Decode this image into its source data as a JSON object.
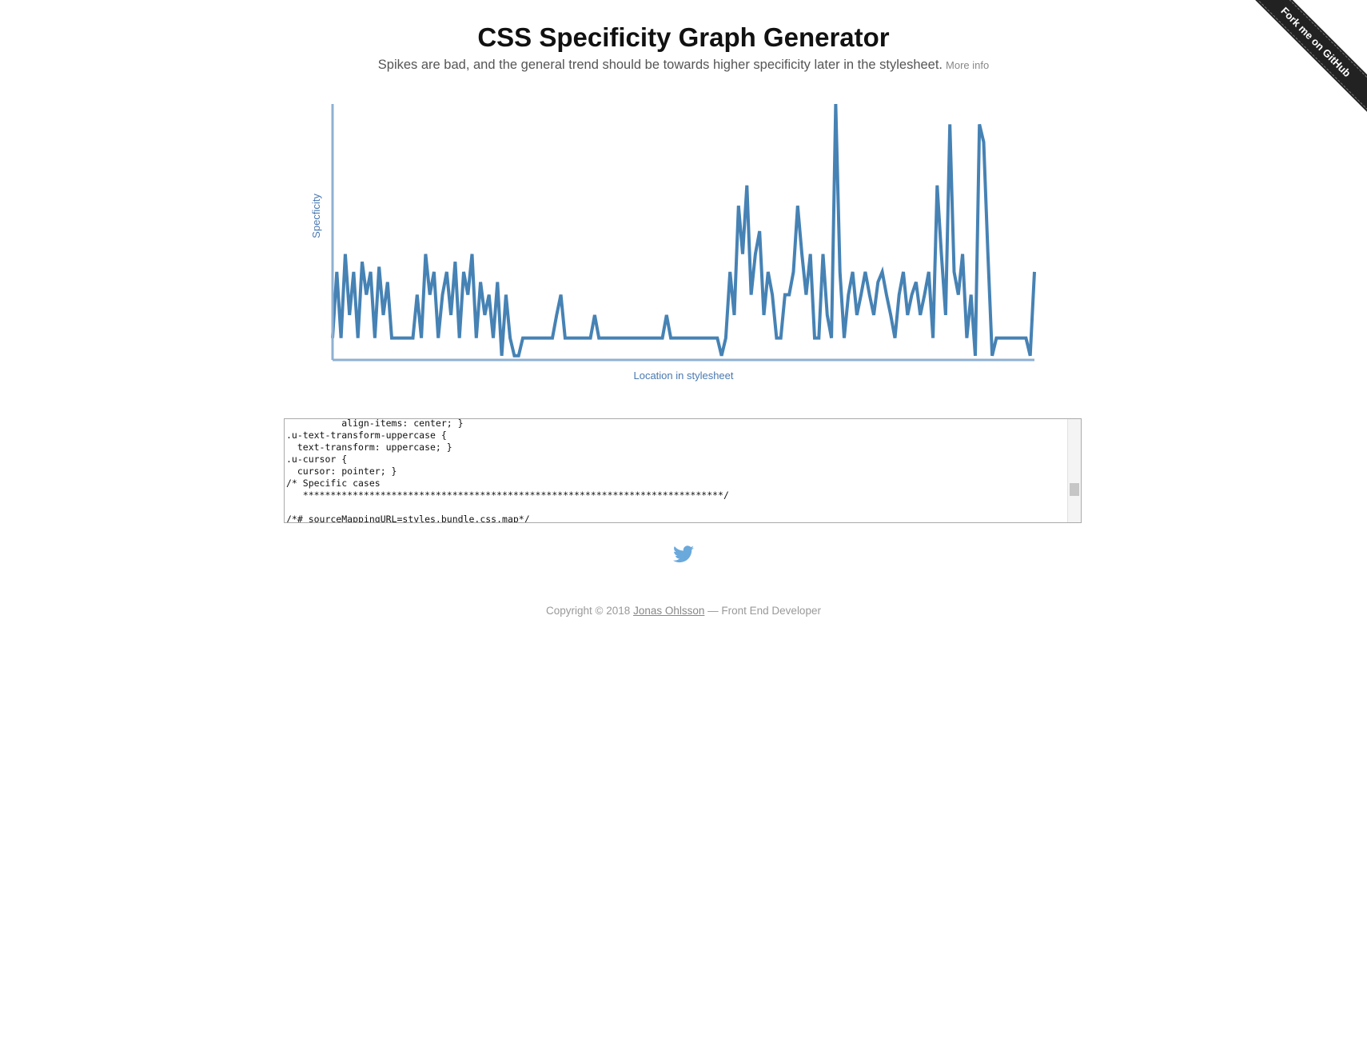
{
  "header": {
    "title": "CSS Specificity Graph Generator",
    "subtitle": "Spikes are bad, and the general trend should be towards higher specificity later in the stylesheet.",
    "more_info": "More info"
  },
  "ribbon": "Fork me on GitHub",
  "chart_data": {
    "type": "line",
    "y_label": "Specficity",
    "x_label": "Location in stylesheet",
    "color": "#4682b4",
    "axis_color": "#8fb0d3",
    "ylim": [
      0,
      100
    ],
    "values": [
      8,
      34,
      8,
      41,
      17,
      34,
      8,
      38,
      25,
      34,
      8,
      36,
      17,
      30,
      8,
      8,
      8,
      8,
      8,
      8,
      25,
      8,
      41,
      25,
      34,
      8,
      25,
      34,
      17,
      38,
      8,
      34,
      25,
      41,
      8,
      30,
      17,
      25,
      8,
      30,
      1,
      25,
      8,
      1,
      1,
      8,
      8,
      8,
      8,
      8,
      8,
      8,
      8,
      17,
      25,
      8,
      8,
      8,
      8,
      8,
      8,
      8,
      17,
      8,
      8,
      8,
      8,
      8,
      8,
      8,
      8,
      8,
      8,
      8,
      8,
      8,
      8,
      8,
      8,
      17,
      8,
      8,
      8,
      8,
      8,
      8,
      8,
      8,
      8,
      8,
      8,
      8,
      1,
      8,
      34,
      17,
      60,
      41,
      68,
      25,
      41,
      50,
      17,
      34,
      25,
      8,
      8,
      25,
      25,
      34,
      60,
      41,
      25,
      41,
      8,
      8,
      41,
      17,
      8,
      100,
      34,
      8,
      25,
      34,
      17,
      25,
      34,
      25,
      17,
      30,
      34,
      25,
      17,
      8,
      25,
      34,
      17,
      25,
      30,
      17,
      25,
      34,
      8,
      68,
      41,
      17,
      92,
      34,
      25,
      41,
      8,
      25,
      1,
      92,
      85,
      41,
      1,
      8,
      8,
      8,
      8,
      8,
      8,
      8,
      8,
      1,
      34
    ]
  },
  "textarea": {
    "lines": [
      "          align-items: center; }",
      ".u-text-transform-uppercase {",
      "  text-transform: uppercase; }",
      ".u-cursor {",
      "  cursor: pointer; }",
      "/* Specific cases",
      "   ****************************************************************************/",
      "",
      "/*# sourceMappingURL=styles.bundle.css.map*/"
    ]
  },
  "footer": {
    "copyright": "Copyright © 2018",
    "author": "Jonas Ohlsson",
    "role": "— Front End Developer"
  }
}
